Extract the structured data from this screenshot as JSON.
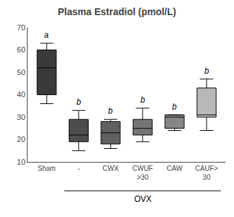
{
  "chart_data": {
    "type": "box",
    "title": "Plasma Estradiol (pmol/L)",
    "categories": [
      "Sham",
      "-",
      "CWX",
      "CWUF\n>30",
      "CAW",
      "CAUF>\n30"
    ],
    "boxes": [
      {
        "q1": 40,
        "median": 52,
        "q3": 60,
        "whisker_low": 36,
        "whisker_high": 63
      },
      {
        "q1": 19,
        "median": 22,
        "q3": 29,
        "whisker_low": 15,
        "whisker_high": 33
      },
      {
        "q1": 18,
        "median": 23,
        "q3": 28,
        "whisker_low": 16,
        "whisker_high": 29
      },
      {
        "q1": 22,
        "median": 25,
        "q3": 29,
        "whisker_low": 19,
        "whisker_high": 34
      },
      {
        "q1": 25,
        "median": 30,
        "q3": 31,
        "whisker_low": 24,
        "whisker_high": 31
      },
      {
        "q1": 30,
        "median": 31,
        "q3": 43,
        "whisker_low": 24,
        "whisker_high": 47
      }
    ],
    "colors": [
      "#3a3a3a",
      "#4d4d4d",
      "#606060",
      "#747474",
      "#868686",
      "#b8b8b8"
    ],
    "annotations": [
      "a",
      "b",
      "b",
      "b",
      "b",
      "b"
    ],
    "bracket": {
      "text": "OVX",
      "from": "-",
      "to": "CAUF>\n30"
    },
    "ylim": [
      10,
      70
    ],
    "yticks": [
      10,
      20,
      30,
      40,
      50,
      60,
      70
    ],
    "grid": false
  }
}
